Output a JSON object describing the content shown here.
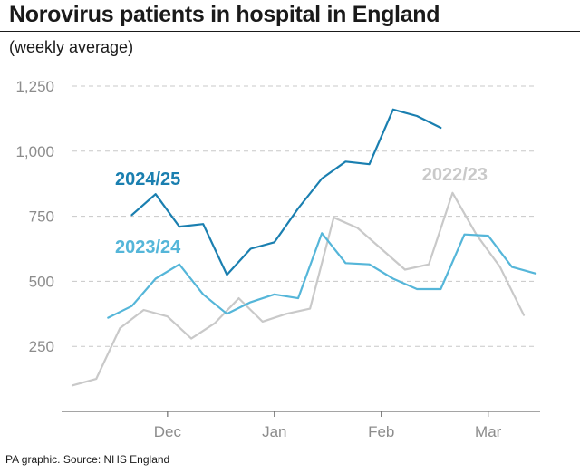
{
  "title": "Norovirus patients in hospital in England",
  "subtitle": "(weekly average)",
  "source": "PA graphic. Source: NHS England",
  "colors": {
    "2024/25": "#1a7fb0",
    "2023/24": "#55b6d9",
    "2022/23": "#c9c9c9",
    "grid": "#c8c8c8",
    "axis": "#6f6f6f",
    "tick": "#8c8c8c"
  },
  "chart_data": {
    "type": "line",
    "title": "Norovirus patients in hospital in England",
    "subtitle": "(weekly average)",
    "xlabel": "",
    "ylabel": "",
    "x_tick_labels": [
      "Dec",
      "Jan",
      "Feb",
      "Mar"
    ],
    "x_tick_weeks": [
      8,
      17,
      26,
      35
    ],
    "y_ticks": [
      250,
      500,
      750,
      1000,
      1250
    ],
    "y_tick_labels": [
      "250",
      "500",
      "750",
      "1,000",
      "1,250"
    ],
    "ylim": [
      0,
      1250
    ],
    "xlim": [
      0,
      38
    ],
    "grid": true,
    "series": [
      {
        "name": "2024/25",
        "label_position": "upper-left",
        "weeks": [
          5,
          7,
          9,
          11,
          13,
          15,
          17,
          19,
          21,
          23,
          25,
          27,
          29,
          31
        ],
        "values": [
          755,
          835,
          710,
          720,
          525,
          625,
          650,
          780,
          895,
          960,
          950,
          1160,
          1135,
          1090
        ]
      },
      {
        "name": "2023/24",
        "label_position": "middle-left",
        "weeks": [
          3,
          5,
          7,
          9,
          11,
          13,
          15,
          17,
          19,
          21,
          23,
          25,
          27,
          29,
          31,
          33,
          35,
          37,
          39
        ],
        "values": [
          360,
          405,
          510,
          565,
          450,
          375,
          420,
          450,
          435,
          685,
          570,
          565,
          510,
          470,
          470,
          680,
          675,
          555,
          530
        ]
      },
      {
        "name": "2022/23",
        "label_position": "upper-right",
        "weeks": [
          0,
          2,
          4,
          6,
          8,
          10,
          12,
          14,
          16,
          18,
          20,
          22,
          24,
          26,
          28,
          30,
          32,
          34,
          36,
          38
        ],
        "values": [
          100,
          125,
          320,
          390,
          365,
          280,
          340,
          435,
          345,
          375,
          395,
          745,
          705,
          625,
          545,
          565,
          840,
          680,
          555,
          370
        ]
      }
    ]
  }
}
